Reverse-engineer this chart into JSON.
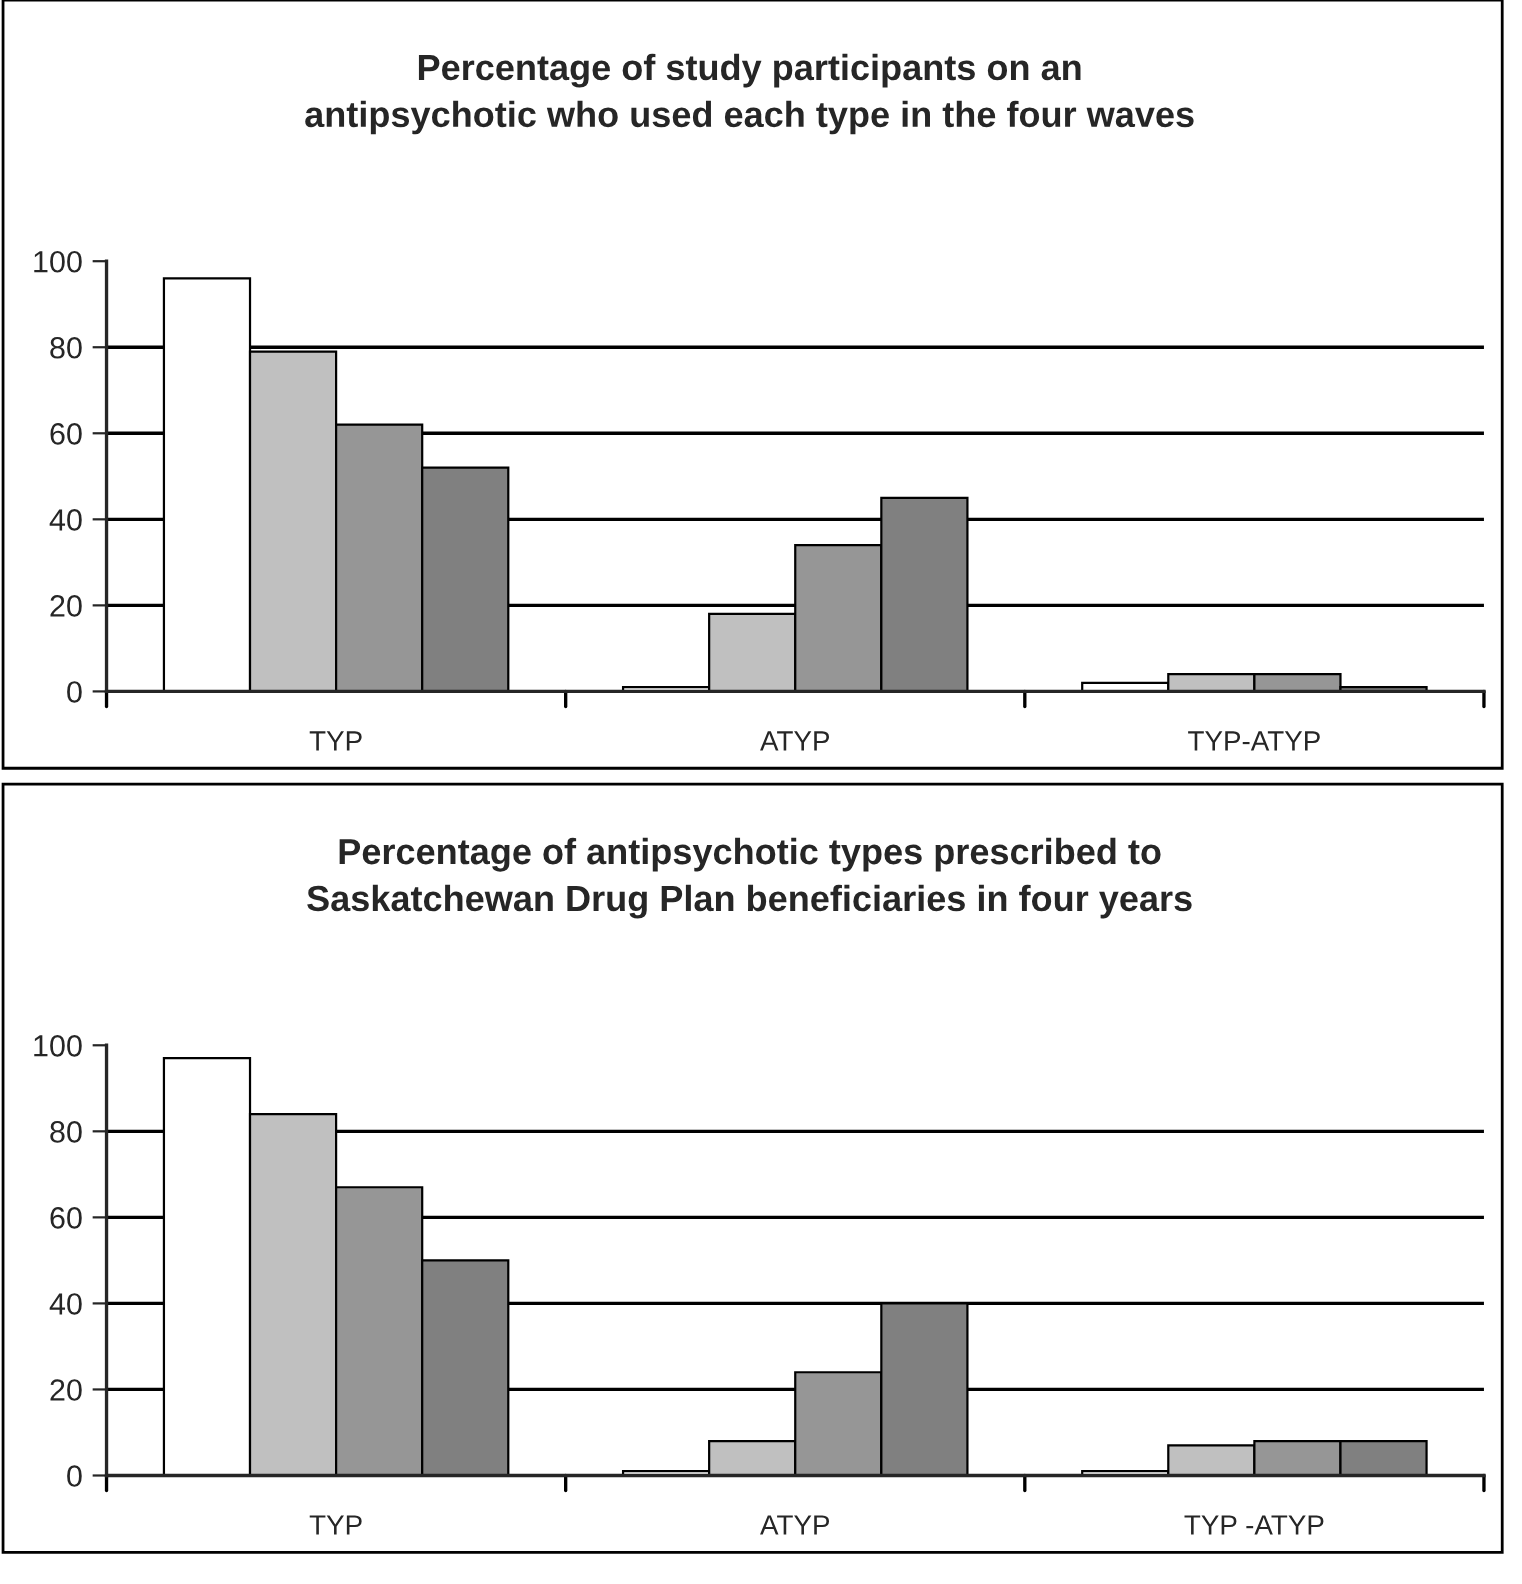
{
  "chart_data": [
    {
      "type": "bar",
      "title": "Percentage of study participants on an\nantipsychotic who used each type in the four waves",
      "categories": [
        "TYP",
        "ATYP",
        "TYP-ATYP"
      ],
      "series": [
        {
          "color": "#ffffff",
          "values": [
            96,
            1,
            2
          ]
        },
        {
          "color": "#c0c0c0",
          "values": [
            79,
            18,
            4
          ]
        },
        {
          "color": "#969696",
          "values": [
            62,
            34,
            4
          ]
        },
        {
          "color": "#808080",
          "values": [
            52,
            45,
            1
          ]
        }
      ],
      "ylim": [
        0,
        100
      ],
      "yticks": [
        0,
        20,
        40,
        60,
        80,
        100
      ],
      "grid": "y"
    },
    {
      "type": "bar",
      "title": "Percentage of antipsychotic types prescribed to\nSaskatchewan Drug Plan beneficiaries in four years",
      "categories": [
        "TYP",
        "ATYP",
        "TYP -ATYP"
      ],
      "series": [
        {
          "color": "#ffffff",
          "values": [
            97,
            1,
            1
          ]
        },
        {
          "color": "#c0c0c0",
          "values": [
            84,
            8,
            7
          ]
        },
        {
          "color": "#969696",
          "values": [
            67,
            24,
            8
          ]
        },
        {
          "color": "#808080",
          "values": [
            50,
            40,
            8
          ]
        }
      ],
      "ylim": [
        0,
        100
      ],
      "yticks": [
        0,
        20,
        40,
        60,
        80,
        100
      ],
      "grid": "y"
    }
  ]
}
